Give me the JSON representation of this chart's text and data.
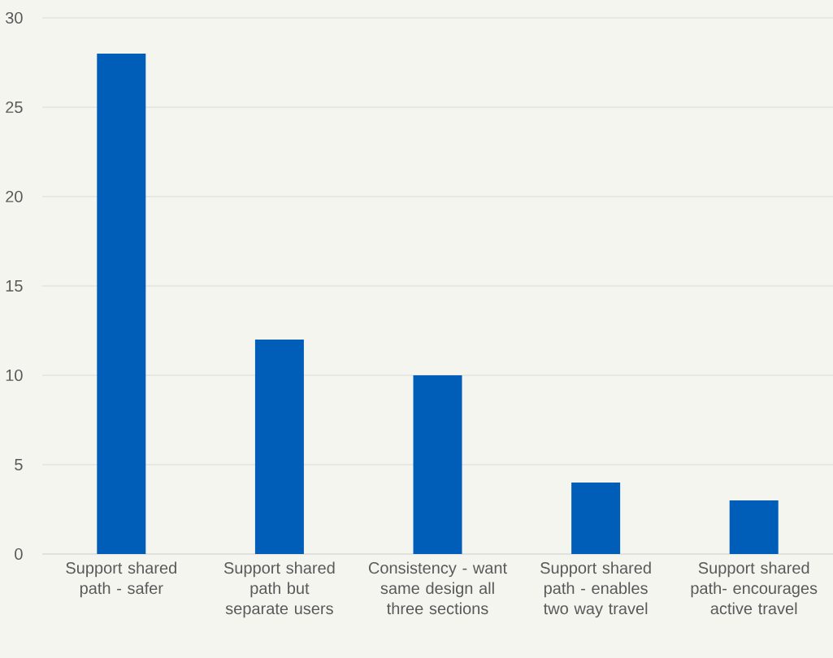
{
  "chart_data": {
    "type": "bar",
    "categories": [
      "Support shared path - safer",
      "Support shared path but separate users",
      "Consistency - want same design all three sections",
      "Support shared path - enables two way travel",
      "Support shared path- encourages active travel"
    ],
    "values": [
      28,
      12,
      10,
      4,
      3
    ],
    "color": "#005eb8",
    "ylim": [
      0,
      30
    ],
    "yticks": [
      0,
      5,
      10,
      15,
      20,
      25,
      30
    ],
    "grid": "y"
  }
}
